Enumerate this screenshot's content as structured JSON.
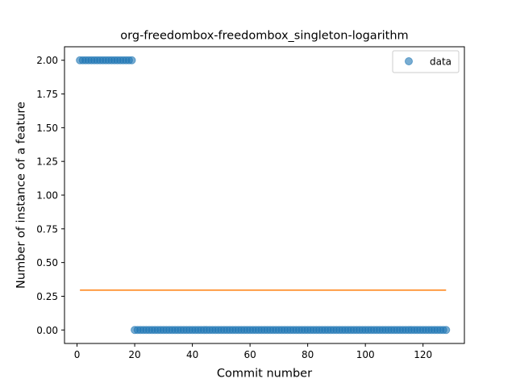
{
  "chart_data": {
    "type": "scatter",
    "title": "org-freedombox-freedombox_singleton-logarithm",
    "xlabel": "Commit number",
    "ylabel": "Number of instance of a feature",
    "xlim": [
      -4.35,
      134.35
    ],
    "ylim": [
      -0.1,
      2.1
    ],
    "xticks": [
      0,
      20,
      40,
      60,
      80,
      100,
      120
    ],
    "yticks": [
      0.0,
      0.25,
      0.5,
      0.75,
      1.0,
      1.25,
      1.5,
      1.75,
      2.0
    ],
    "ytick_labels": [
      "0.00",
      "0.25",
      "0.50",
      "0.75",
      "1.00",
      "1.25",
      "1.50",
      "1.75",
      "2.00"
    ],
    "grid": false,
    "legend_position": "top-right",
    "series": [
      {
        "name": "data",
        "kind": "scatter",
        "color": "#1f77b4",
        "segments": [
          {
            "x_start": 1,
            "x_end": 19,
            "y": 2.0
          },
          {
            "x_start": 20,
            "x_end": 128,
            "y": 0.0
          }
        ]
      },
      {
        "kind": "line",
        "color": "#ff7f0e",
        "x": [
          1,
          128
        ],
        "y": [
          0.295,
          0.295
        ]
      }
    ]
  }
}
